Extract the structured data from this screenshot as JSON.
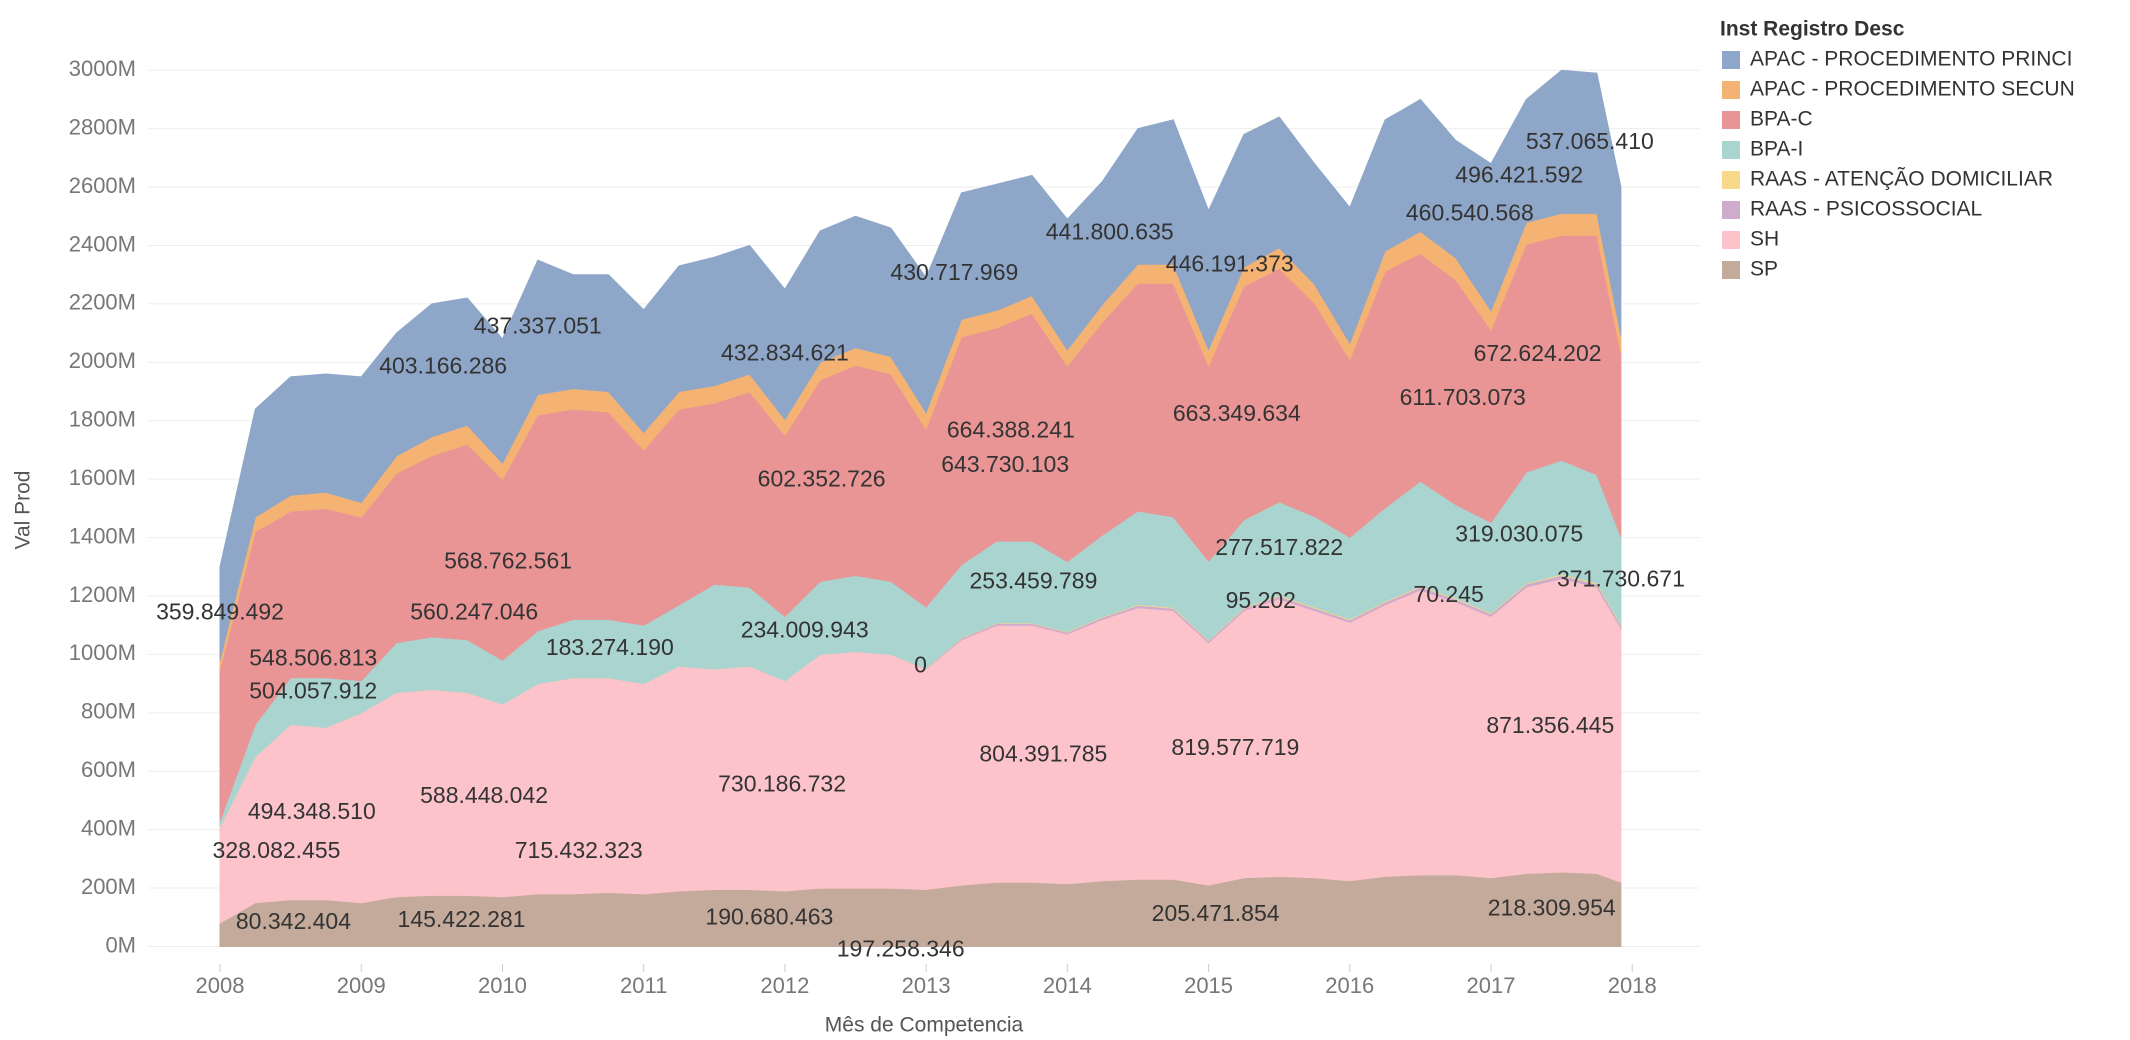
{
  "chart_data": {
    "type": "stacked_area",
    "x_label": "Mês de Competencia",
    "y_label": "Val Prod",
    "legend_title": "Inst Registro Desc",
    "legend": "right",
    "grid": true,
    "xlim": [
      2007.49,
      2018.48
    ],
    "ylim": [
      -60,
      3220
    ],
    "xticks": [
      2008,
      2009,
      2010,
      2011,
      2012,
      2013,
      2014,
      2015,
      2016,
      2017,
      2018
    ],
    "yticks": [
      {
        "value": 0,
        "label": "0M"
      },
      {
        "value": 200,
        "label": "200M"
      },
      {
        "value": 400,
        "label": "400M"
      },
      {
        "value": 600,
        "label": "600M"
      },
      {
        "value": 800,
        "label": "800M"
      },
      {
        "value": 1000,
        "label": "1000M"
      },
      {
        "value": 1200,
        "label": "1200M"
      },
      {
        "value": 1400,
        "label": "1400M"
      },
      {
        "value": 1600,
        "label": "1600M"
      },
      {
        "value": 1800,
        "label": "1800M"
      },
      {
        "value": 2000,
        "label": "2000M"
      },
      {
        "value": 2200,
        "label": "2200M"
      },
      {
        "value": 2400,
        "label": "2400M"
      },
      {
        "value": 2600,
        "label": "2600M"
      },
      {
        "value": 2800,
        "label": "2800M"
      },
      {
        "value": 3000,
        "label": "3000M"
      }
    ],
    "x": [
      2008,
      2008.25,
      2008.5,
      2008.75,
      2009,
      2009.25,
      2009.5,
      2009.75,
      2010,
      2010.25,
      2010.5,
      2010.75,
      2011,
      2011.25,
      2011.5,
      2011.75,
      2012,
      2012.25,
      2012.5,
      2012.75,
      2013,
      2013.25,
      2013.5,
      2013.75,
      2014,
      2014.25,
      2014.5,
      2014.75,
      2015,
      2015.25,
      2015.5,
      2015.75,
      2016,
      2016.25,
      2016.5,
      2016.75,
      2017,
      2017.25,
      2017.5,
      2017.75,
      2017.92
    ],
    "series": [
      {
        "name": "APAC - PROCEDIMENTO PRINCI",
        "color": "#8ea6c8",
        "values": [
          320,
          370,
          405,
          405,
          430,
          420,
          455,
          435,
          425,
          460,
          390,
          400,
          420,
          430,
          440,
          440,
          445,
          450,
          450,
          440,
          462,
          433,
          432,
          412,
          447,
          421,
          464,
          494,
          476,
          454,
          448,
          413,
          464,
          448,
          452,
          402,
          503,
          421,
          490,
          480,
          507
        ]
      },
      {
        "name": "APAC - PROCEDIMENTO SECUN",
        "color": "#f4b372",
        "values": [
          30,
          50,
          55,
          55,
          50,
          60,
          65,
          65,
          55,
          70,
          70,
          70,
          60,
          60,
          60,
          60,
          55,
          60,
          60,
          60,
          55,
          60,
          60,
          60,
          55,
          60,
          65,
          65,
          55,
          65,
          70,
          65,
          55,
          70,
          75,
          75,
          65,
          75,
          75,
          75,
          60
        ]
      },
      {
        "name": "BPA-C",
        "color": "#e99596",
        "values": [
          520,
          660,
          570,
          580,
          560,
          580,
          620,
          670,
          620,
          740,
          720,
          710,
          600,
          670,
          620,
          670,
          620,
          690,
          720,
          710,
          610,
          780,
          730,
          780,
          670,
          730,
          780,
          800,
          670,
          800,
          800,
          730,
          610,
          810,
          780,
          770,
          660,
          780,
          770,
          820,
          630
        ]
      },
      {
        "name": "BPA-I",
        "color": "#a9d4cf",
        "values": [
          20,
          110,
          160,
          170,
          110,
          170,
          180,
          180,
          150,
          180,
          200,
          200,
          200,
          210,
          290,
          270,
          220,
          250,
          260,
          250,
          210,
          250,
          280,
          280,
          240,
          280,
          320,
          310,
          270,
          300,
          320,
          310,
          280,
          320,
          360,
          320,
          310,
          380,
          390,
          370,
          300
        ]
      },
      {
        "name": "RAAS - ATENÇÃO DOMICILIAR",
        "color": "#f7d98c",
        "values": [
          0,
          0,
          0,
          0,
          0,
          0,
          0,
          0,
          0,
          0,
          0,
          0,
          0,
          0,
          0,
          0,
          0,
          0,
          0,
          0,
          1,
          2,
          2,
          2,
          2,
          2,
          3,
          3,
          2,
          3,
          3,
          3,
          3,
          3,
          3,
          3,
          3,
          3,
          4,
          4,
          3
        ]
      },
      {
        "name": "RAAS - PSICOSSOCIAL",
        "color": "#cfabcc",
        "values": [
          0,
          0,
          0,
          0,
          0,
          0,
          0,
          0,
          0,
          0,
          0,
          0,
          0,
          0,
          0,
          0,
          0,
          0,
          0,
          0,
          2,
          5,
          6,
          6,
          6,
          7,
          8,
          8,
          7,
          8,
          9,
          9,
          8,
          9,
          10,
          10,
          9,
          11,
          11,
          11,
          10
        ]
      },
      {
        "name": "SH",
        "color": "#fdc3cb",
        "values": [
          330,
          500,
          600,
          590,
          650,
          700,
          705,
          695,
          660,
          720,
          740,
          735,
          720,
          770,
          755,
          765,
          720,
          800,
          810,
          800,
          755,
          840,
          880,
          880,
          855,
          895,
          930,
          920,
          830,
          915,
          950,
          915,
          885,
          930,
          975,
          935,
          895,
          980,
          1005,
          980,
          870
        ]
      },
      {
        "name": "SP",
        "color": "#c4aa9b",
        "values": [
          80,
          150,
          160,
          160,
          150,
          170,
          175,
          175,
          170,
          180,
          180,
          185,
          180,
          190,
          195,
          195,
          190,
          200,
          200,
          200,
          195,
          210,
          220,
          220,
          215,
          225,
          230,
          230,
          210,
          235,
          240,
          235,
          225,
          240,
          245,
          245,
          235,
          250,
          255,
          250,
          220
        ]
      }
    ],
    "annotations": [
      {
        "series": "APAC - PROCEDIMENTO PRINCI",
        "x": 2008.0,
        "value": 359.849492,
        "label": "359.849.492"
      },
      {
        "series": "APAC - PROCEDIMENTO PRINCI",
        "x": 2009.58,
        "value": 403.166286,
        "label": "403.166.286"
      },
      {
        "series": "APAC - PROCEDIMENTO PRINCI",
        "x": 2010.25,
        "value": 437.337051,
        "label": "437.337.051"
      },
      {
        "series": "APAC - PROCEDIMENTO PRINCI",
        "x": 2012.0,
        "value": 432.834621,
        "label": "432.834.621"
      },
      {
        "series": "APAC - PROCEDIMENTO PRINCI",
        "x": 2013.2,
        "value": 430.717969,
        "label": "430.717.969"
      },
      {
        "series": "APAC - PROCEDIMENTO PRINCI",
        "x": 2014.3,
        "value": 441.800635,
        "label": "441.800.635"
      },
      {
        "series": "APAC - PROCEDIMENTO PRINCI",
        "x": 2015.15,
        "value": 446.191373,
        "label": "446.191.373"
      },
      {
        "series": "APAC - PROCEDIMENTO PRINCI",
        "x": 2016.85,
        "value": 460.540568,
        "label": "460.540.568"
      },
      {
        "series": "APAC - PROCEDIMENTO PRINCI",
        "x": 2017.2,
        "value": 496.421592,
        "label": "496.421.592"
      },
      {
        "series": "APAC - PROCEDIMENTO PRINCI",
        "x": 2017.7,
        "value": 537.06541,
        "label": "537.065.410"
      },
      {
        "series": "BPA-C",
        "x": 2008.66,
        "value": 548.506813,
        "label": "548.506.813"
      },
      {
        "series": "BPA-C",
        "x": 2008.66,
        "value": 504.057912,
        "label": "504.057.912"
      },
      {
        "series": "BPA-C",
        "x": 2010.04,
        "value": 568.762561,
        "label": "568.762.561"
      },
      {
        "series": "BPA-C",
        "x": 2009.8,
        "value": 560.247046,
        "label": "560.247.046"
      },
      {
        "series": "BPA-C",
        "x": 2012.26,
        "value": 602.352726,
        "label": "602.352.726"
      },
      {
        "series": "BPA-C",
        "x": 2013.6,
        "value": 664.388241,
        "label": "664.388.241"
      },
      {
        "series": "BPA-C",
        "x": 2013.56,
        "value": 643.730103,
        "label": "643.730.103"
      },
      {
        "series": "BPA-C",
        "x": 2015.2,
        "value": 663.349634,
        "label": "663.349.634"
      },
      {
        "series": "BPA-C",
        "x": 2016.8,
        "value": 611.703073,
        "label": "611.703.073"
      },
      {
        "series": "BPA-C",
        "x": 2017.33,
        "value": 672.624202,
        "label": "672.624.202"
      },
      {
        "series": "BPA-I",
        "x": 2010.76,
        "value": 183.27419,
        "label": "183.274.190"
      },
      {
        "series": "BPA-I",
        "x": 2012.14,
        "value": 234.009943,
        "label": "234.009.943"
      },
      {
        "series": "BPA-I",
        "x": 2013.76,
        "value": 253.459789,
        "label": "253.459.789"
      },
      {
        "series": "BPA-I",
        "x": 2015.5,
        "value": 277.517822,
        "label": "277.517.822"
      },
      {
        "series": "BPA-I",
        "x": 2017.2,
        "value": 319.030075,
        "label": "319.030.075"
      },
      {
        "series": "BPA-I",
        "x": 2017.92,
        "value": 371.730671,
        "label": "371.730.671"
      },
      {
        "series": "SH",
        "x": 2008.65,
        "value": 494.34851,
        "label": "494.348.510"
      },
      {
        "series": "SH",
        "x": 2008.4,
        "value": 328.082455,
        "label": "328.082.455"
      },
      {
        "series": "SH",
        "x": 2009.87,
        "value": 588.448042,
        "label": "588.448.042"
      },
      {
        "series": "SH",
        "x": 2010.54,
        "value": 715.432323,
        "label": "715.432.323"
      },
      {
        "series": "SH",
        "x": 2011.98,
        "value": 730.186732,
        "label": "730.186.732"
      },
      {
        "series": "RAAS - PSICOSSOCIAL",
        "x": 2012.96,
        "value": 0,
        "label": "0"
      },
      {
        "series": "SH",
        "x": 2013.83,
        "value": 804.391785,
        "label": "804.391.785"
      },
      {
        "series": "SH",
        "x": 2015.19,
        "value": 819.577719,
        "label": "819.577.719"
      },
      {
        "series": "RAAS - ATENÇÃO DOMICILIAR",
        "x": 2015.37,
        "value": 0.095202,
        "label": "95.202"
      },
      {
        "series": "RAAS - ATENÇÃO DOMICILIAR",
        "x": 2016.7,
        "value": 0.070245,
        "label": "70.245"
      },
      {
        "series": "SH",
        "x": 2017.42,
        "value": 871.356445,
        "label": "871.356.445"
      },
      {
        "series": "SP",
        "x": 2008.52,
        "value": 80.342404,
        "label": "80.342.404"
      },
      {
        "series": "SP",
        "x": 2009.71,
        "value": 145.422281,
        "label": "145.422.281"
      },
      {
        "series": "SP",
        "x": 2011.89,
        "value": 190.680463,
        "label": "190.680.463"
      },
      {
        "series": "SP",
        "x": 2012.82,
        "value": 197.258346,
        "label": "197.258.346"
      },
      {
        "series": "SP",
        "x": 2015.05,
        "value": 205.471854,
        "label": "205.471.854"
      },
      {
        "series": "SP",
        "x": 2017.43,
        "value": 218.309954,
        "label": "218.309.954"
      }
    ]
  }
}
